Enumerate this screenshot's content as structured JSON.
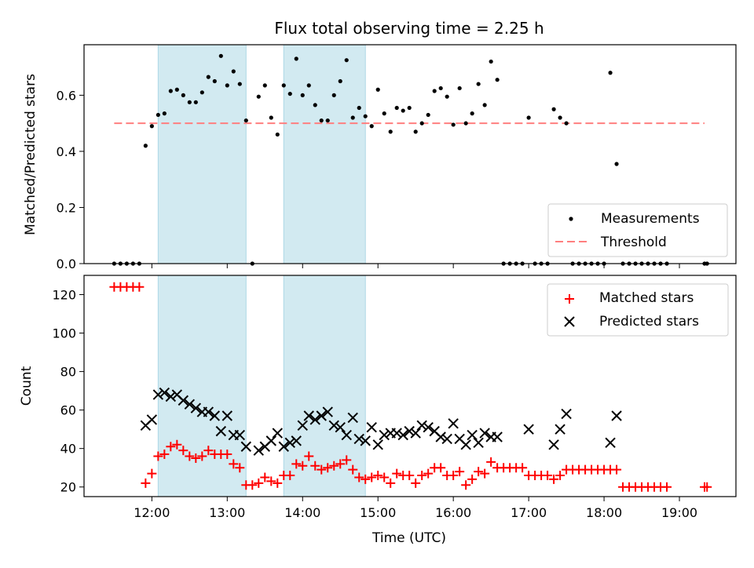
{
  "chart_data": [
    {
      "type": "scatter",
      "title": "Flux total observing time = 2.25 h",
      "ylabel": "Matched/Predicted stars",
      "xlim": [
        "11:06",
        "19:45"
      ],
      "ylim": [
        0,
        0.78
      ],
      "yticks": [
        "0.0",
        "0.2",
        "0.4",
        "0.6"
      ],
      "threshold": 0.5,
      "threshold_span": [
        "11:30",
        "19:20"
      ],
      "bands": [
        [
          "12:05",
          "13:15"
        ],
        [
          "13:45",
          "14:50"
        ]
      ],
      "legend_position": "lower right",
      "legend": [
        "Measurements",
        "Threshold"
      ],
      "colors": {
        "points": "#000000",
        "threshold": "#ff7f7f",
        "band": "#add8e6"
      },
      "series": [
        {
          "name": "Measurements",
          "x": [
            "11:30",
            "11:35",
            "11:40",
            "11:45",
            "11:50",
            "11:55",
            "12:00",
            "12:05",
            "12:10",
            "12:15",
            "12:20",
            "12:25",
            "12:30",
            "12:35",
            "12:40",
            "12:45",
            "12:50",
            "12:55",
            "13:00",
            "13:05",
            "13:10",
            "13:15",
            "13:20",
            "13:25",
            "13:30",
            "13:35",
            "13:40",
            "13:45",
            "13:50",
            "13:55",
            "14:00",
            "14:05",
            "14:10",
            "14:15",
            "14:20",
            "14:25",
            "14:30",
            "14:35",
            "14:40",
            "14:45",
            "14:50",
            "14:55",
            "15:00",
            "15:05",
            "15:10",
            "15:15",
            "15:20",
            "15:25",
            "15:30",
            "15:35",
            "15:40",
            "15:45",
            "15:50",
            "15:55",
            "16:00",
            "16:05",
            "16:10",
            "16:15",
            "16:20",
            "16:25",
            "16:30",
            "16:35",
            "16:40",
            "16:45",
            "16:50",
            "16:55",
            "17:00",
            "17:05",
            "17:10",
            "17:15",
            "17:20",
            "17:25",
            "17:30",
            "17:35",
            "17:40",
            "17:45",
            "17:50",
            "17:55",
            "18:00",
            "18:05",
            "18:10",
            "18:15",
            "18:20",
            "18:25",
            "18:30",
            "18:35",
            "18:40",
            "18:45",
            "18:50",
            "19:20",
            "19:22"
          ],
          "y": [
            0,
            0,
            0,
            0,
            0,
            0.42,
            0.49,
            0.53,
            0.535,
            0.615,
            0.62,
            0.6,
            0.575,
            0.575,
            0.61,
            0.665,
            0.65,
            0.74,
            0.635,
            0.685,
            0.64,
            0.51,
            0,
            0.595,
            0.635,
            0.52,
            0.46,
            0.635,
            0.605,
            0.73,
            0.6,
            0.635,
            0.565,
            0.51,
            0.51,
            0.6,
            0.65,
            0.725,
            0.52,
            0.555,
            0.525,
            0.49,
            0.62,
            0.535,
            0.47,
            0.555,
            0.545,
            0.555,
            0.47,
            0.5,
            0.53,
            0.615,
            0.625,
            0.595,
            0.495,
            0.625,
            0.5,
            0.535,
            0.64,
            0.565,
            0.72,
            0.655,
            0,
            0,
            0,
            0,
            0.52,
            0,
            0,
            0,
            0.55,
            0.52,
            0.5,
            0,
            0,
            0,
            0,
            0,
            0,
            0.68,
            0.355,
            0,
            0,
            0,
            0,
            0,
            0,
            0,
            0,
            0,
            0
          ]
        }
      ]
    },
    {
      "type": "scatter",
      "xlabel": "Time (UTC)",
      "ylabel": "Count",
      "xlim": [
        "11:06",
        "19:45"
      ],
      "ylim": [
        15,
        130
      ],
      "yticks": [
        "20",
        "40",
        "60",
        "80",
        "100",
        "120"
      ],
      "xticks": [
        "12:00",
        "13:00",
        "14:00",
        "15:00",
        "16:00",
        "17:00",
        "18:00",
        "19:00"
      ],
      "bands": [
        [
          "12:05",
          "13:15"
        ],
        [
          "13:45",
          "14:50"
        ]
      ],
      "legend_position": "upper right",
      "legend": [
        "Matched stars",
        "Predicted stars"
      ],
      "colors": {
        "matched": "#ff0000",
        "predicted": "#000000",
        "band": "#add8e6"
      },
      "series": [
        {
          "name": "Matched stars",
          "x": [
            "11:30",
            "11:35",
            "11:40",
            "11:45",
            "11:50",
            "11:55",
            "12:00",
            "12:05",
            "12:10",
            "12:15",
            "12:20",
            "12:25",
            "12:30",
            "12:35",
            "12:40",
            "12:45",
            "12:50",
            "12:55",
            "13:00",
            "13:05",
            "13:10",
            "13:15",
            "13:20",
            "13:25",
            "13:30",
            "13:35",
            "13:40",
            "13:45",
            "13:50",
            "13:55",
            "14:00",
            "14:05",
            "14:10",
            "14:15",
            "14:20",
            "14:25",
            "14:30",
            "14:35",
            "14:40",
            "14:45",
            "14:50",
            "14:55",
            "15:00",
            "15:05",
            "15:10",
            "15:15",
            "15:20",
            "15:25",
            "15:30",
            "15:35",
            "15:40",
            "15:45",
            "15:50",
            "15:55",
            "16:00",
            "16:05",
            "16:10",
            "16:15",
            "16:20",
            "16:25",
            "16:30",
            "16:35",
            "16:40",
            "16:45",
            "16:50",
            "16:55",
            "17:00",
            "17:05",
            "17:10",
            "17:15",
            "17:20",
            "17:25",
            "17:30",
            "17:35",
            "17:40",
            "17:45",
            "17:50",
            "17:55",
            "18:00",
            "18:05",
            "18:10",
            "18:15",
            "18:20",
            "18:25",
            "18:30",
            "18:35",
            "18:40",
            "18:45",
            "18:50",
            "19:20",
            "19:22"
          ],
          "y": [
            124,
            124,
            124,
            124,
            124,
            22,
            27,
            36,
            37,
            41,
            42,
            39,
            36,
            35,
            36,
            39,
            37,
            37,
            37,
            32,
            30,
            21,
            21,
            22,
            25,
            23,
            22,
            26,
            26,
            32,
            31,
            36,
            31,
            29,
            30,
            31,
            32,
            34,
            29,
            25,
            24,
            25,
            26,
            25,
            22,
            27,
            26,
            26,
            22,
            26,
            27,
            30,
            30,
            26,
            26,
            28,
            21,
            24,
            28,
            27,
            33,
            30,
            30,
            30,
            30,
            30,
            26,
            26,
            26,
            26,
            24,
            26,
            29,
            29,
            29,
            29,
            29,
            29,
            29,
            29,
            29,
            20,
            20,
            20,
            20,
            20,
            20,
            20,
            20,
            20,
            20
          ]
        },
        {
          "name": "Predicted stars",
          "x": [
            "11:55",
            "12:00",
            "12:05",
            "12:10",
            "12:15",
            "12:20",
            "12:25",
            "12:30",
            "12:35",
            "12:40",
            "12:45",
            "12:50",
            "12:55",
            "13:00",
            "13:05",
            "13:10",
            "13:15",
            "13:25",
            "13:30",
            "13:35",
            "13:40",
            "13:45",
            "13:50",
            "13:55",
            "14:00",
            "14:05",
            "14:10",
            "14:15",
            "14:20",
            "14:25",
            "14:30",
            "14:35",
            "14:40",
            "14:45",
            "14:50",
            "14:55",
            "15:00",
            "15:05",
            "15:10",
            "15:15",
            "15:20",
            "15:25",
            "15:30",
            "15:35",
            "15:40",
            "15:45",
            "15:50",
            "15:55",
            "16:00",
            "16:05",
            "16:10",
            "16:15",
            "16:20",
            "16:25",
            "16:30",
            "16:35",
            "17:00",
            "17:20",
            "17:25",
            "17:30",
            "18:05",
            "18:10"
          ],
          "y": [
            52,
            55,
            68,
            69,
            67,
            68,
            65,
            63,
            61,
            59,
            59,
            57,
            49,
            57,
            47,
            47,
            41,
            39,
            41,
            44,
            48,
            41,
            43,
            44,
            52,
            57,
            55,
            57,
            59,
            52,
            51,
            47,
            56,
            45,
            44,
            51,
            42,
            47,
            48,
            48,
            47,
            49,
            48,
            52,
            51,
            49,
            46,
            45,
            53,
            45,
            42,
            47,
            43,
            48,
            46,
            46,
            50,
            42,
            50,
            58,
            43,
            57
          ]
        }
      ]
    }
  ]
}
